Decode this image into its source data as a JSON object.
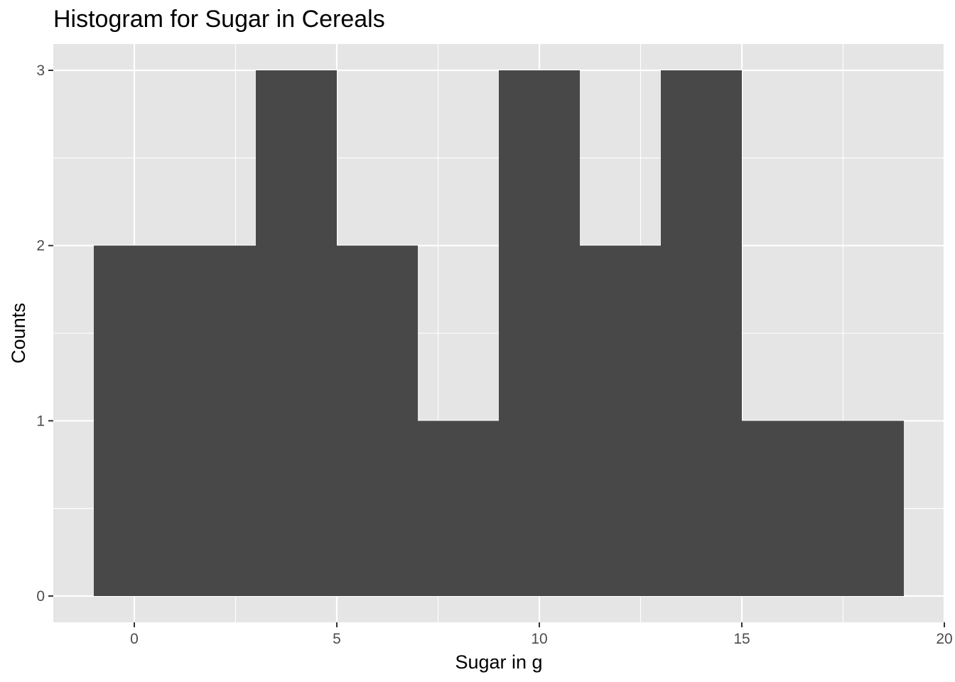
{
  "chart_data": {
    "type": "bar",
    "title": "Histogram for Sugar in Cereals",
    "xlabel": "Sugar in g",
    "ylabel": "Counts",
    "bin_width": 2,
    "bins": [
      {
        "x_start": -1,
        "x_end": 1,
        "count": 2
      },
      {
        "x_start": 1,
        "x_end": 3,
        "count": 2
      },
      {
        "x_start": 3,
        "x_end": 5,
        "count": 3
      },
      {
        "x_start": 5,
        "x_end": 7,
        "count": 2
      },
      {
        "x_start": 7,
        "x_end": 9,
        "count": 1
      },
      {
        "x_start": 9,
        "x_end": 11,
        "count": 3
      },
      {
        "x_start": 11,
        "x_end": 13,
        "count": 2
      },
      {
        "x_start": 13,
        "x_end": 15,
        "count": 3
      },
      {
        "x_start": 15,
        "x_end": 17,
        "count": 1
      },
      {
        "x_start": 17,
        "x_end": 19,
        "count": 1
      }
    ],
    "xlim": [
      -2,
      20
    ],
    "ylim": [
      -0.15,
      3.15
    ],
    "x_ticks": [
      0,
      5,
      10,
      15,
      20
    ],
    "y_ticks": [
      0,
      1,
      2,
      3
    ],
    "grid": true,
    "colors": {
      "panel_background": "#e5e5e5",
      "grid": "#ffffff",
      "bar_fill": "#484848",
      "tick_text": "#4d4d4d"
    }
  }
}
